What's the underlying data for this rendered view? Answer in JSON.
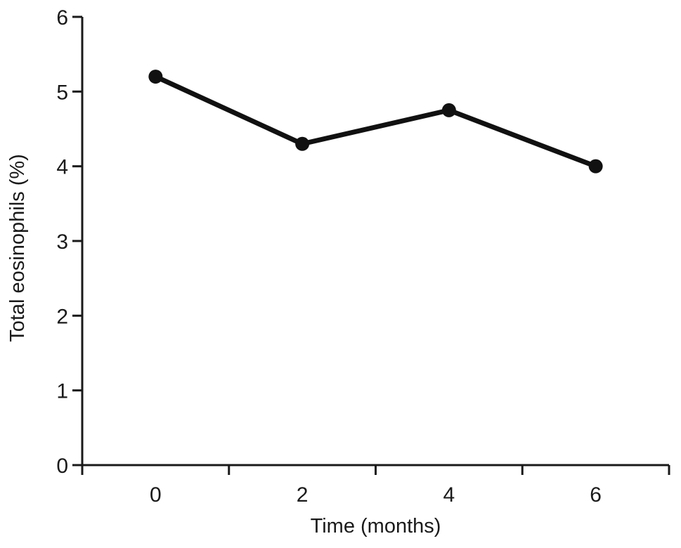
{
  "chart_data": {
    "type": "line",
    "title": "",
    "xlabel": "Time (months)",
    "ylabel": "Total eosinophils (%)",
    "x": [
      0,
      2,
      4,
      6
    ],
    "x_tick_labels": [
      "0",
      "2",
      "4",
      "6"
    ],
    "y_tick_labels": [
      "0",
      "1",
      "2",
      "3",
      "4",
      "5",
      "6"
    ],
    "ylim": [
      0,
      6
    ],
    "xlim": [
      -1,
      7
    ],
    "grid": false,
    "series": [
      {
        "values": [
          5.2,
          4.3,
          4.75,
          4.0
        ],
        "color": "#111111"
      }
    ]
  }
}
